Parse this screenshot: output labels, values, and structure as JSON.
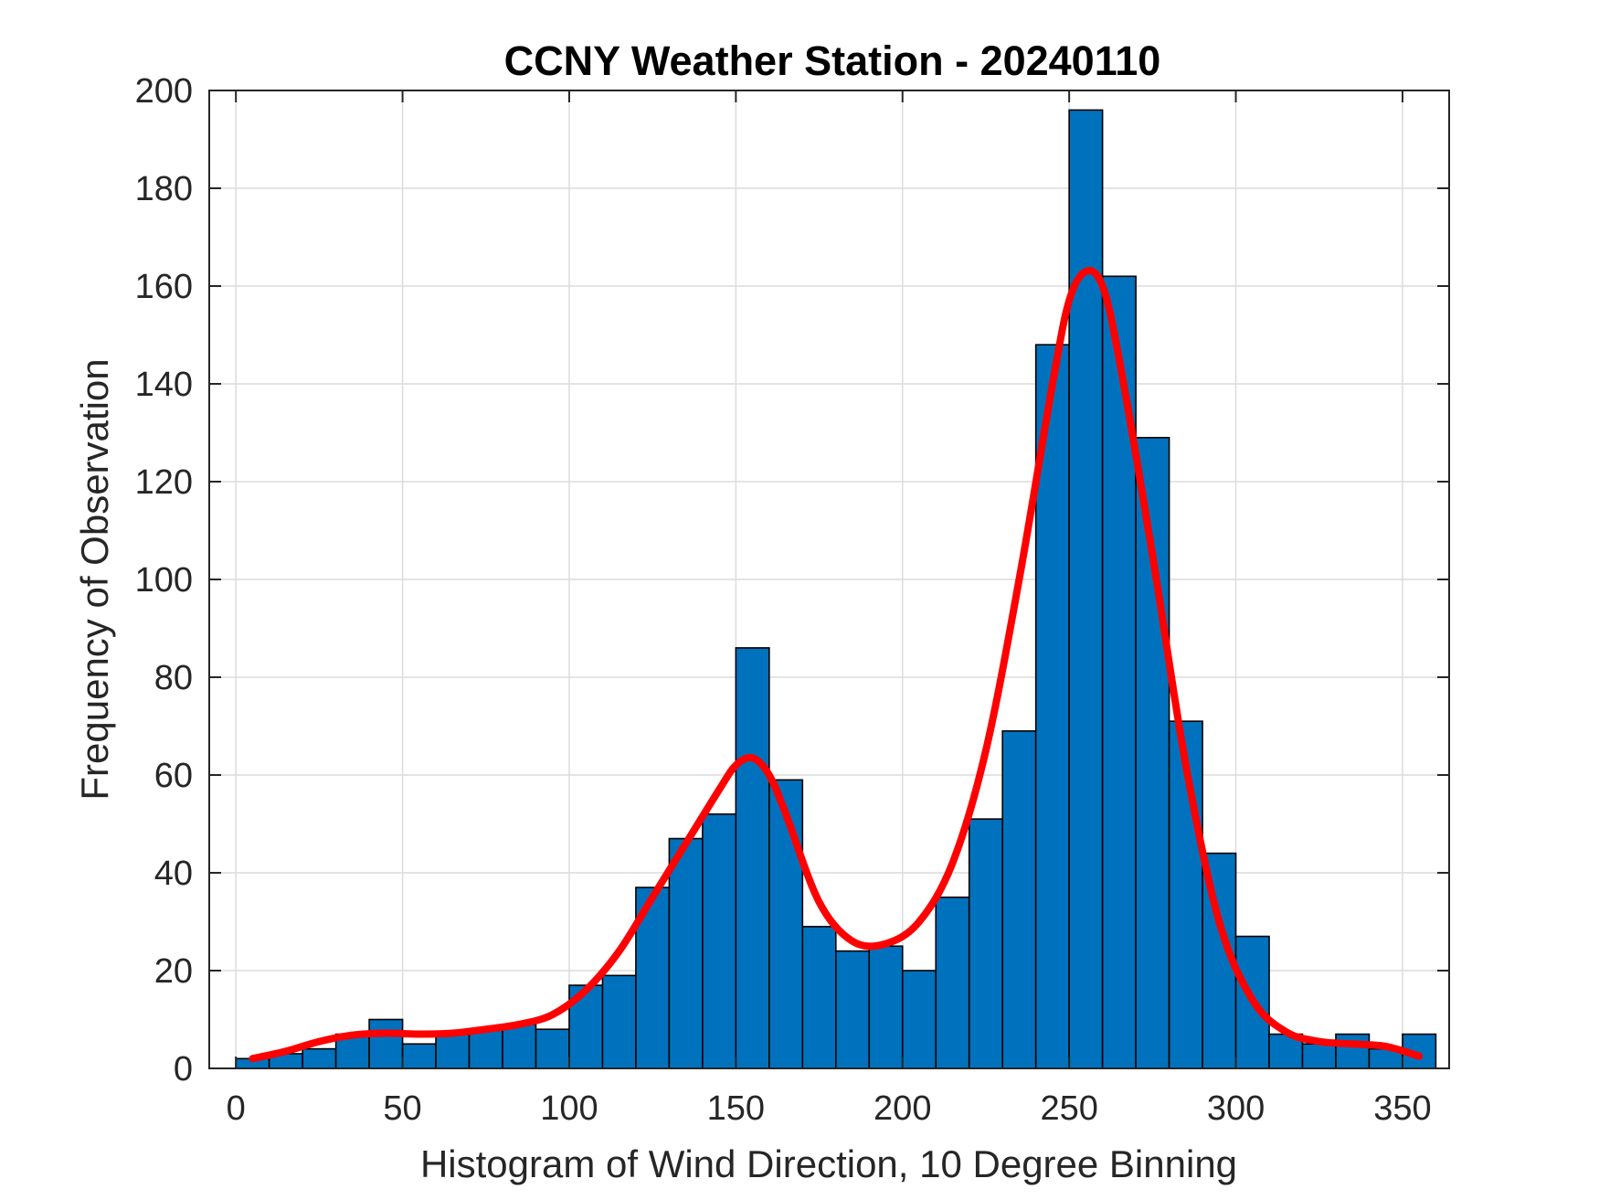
{
  "chart_data": {
    "type": "bar",
    "title": "CCNY Weather Station - 20240110",
    "xlabel": "Histogram of Wind Direction, 10 Degree Binning",
    "ylabel": "Frequency of Observation",
    "xlim": [
      -8,
      364
    ],
    "ylim": [
      0,
      200
    ],
    "xticks": [
      0,
      50,
      100,
      150,
      200,
      250,
      300,
      350
    ],
    "yticks": [
      0,
      20,
      40,
      60,
      80,
      100,
      120,
      140,
      160,
      180,
      200
    ],
    "grid": true,
    "bin_width": 10,
    "bin_edges": [
      0,
      10,
      20,
      30,
      40,
      50,
      60,
      70,
      80,
      90,
      100,
      110,
      120,
      130,
      140,
      150,
      160,
      170,
      180,
      190,
      200,
      210,
      220,
      230,
      240,
      250,
      260,
      270,
      280,
      290,
      300,
      310,
      320,
      330,
      340,
      350,
      360
    ],
    "values": [
      2,
      3,
      4,
      7,
      10,
      5,
      7,
      8,
      9,
      8,
      17,
      19,
      37,
      47,
      52,
      86,
      59,
      29,
      24,
      25,
      20,
      35,
      51,
      69,
      148,
      196,
      162,
      129,
      71,
      44,
      27,
      7,
      5,
      7,
      4,
      7
    ],
    "bar_color": "#0072BD",
    "bar_edge_color": "#000000",
    "fit_curve": {
      "color": "#FF0000",
      "x": [
        5,
        15,
        25,
        35,
        45,
        55,
        65,
        75,
        85,
        95,
        105,
        115,
        125,
        135,
        145,
        150,
        155,
        160,
        165,
        175,
        185,
        195,
        205,
        215,
        225,
        235,
        245,
        250,
        255,
        260,
        265,
        275,
        285,
        295,
        305,
        315,
        325,
        335,
        345,
        355
      ],
      "y": [
        2,
        3.5,
        5.5,
        6.8,
        7.2,
        7,
        7.2,
        8,
        9,
        11,
        16,
        24,
        35,
        46,
        57,
        62,
        63.5,
        60,
        52,
        34,
        26,
        25.5,
        30,
        42,
        65,
        100,
        140,
        157,
        163,
        160,
        145,
        105,
        62,
        30,
        14,
        7.5,
        5.5,
        5,
        4.5,
        2.5
      ]
    }
  }
}
